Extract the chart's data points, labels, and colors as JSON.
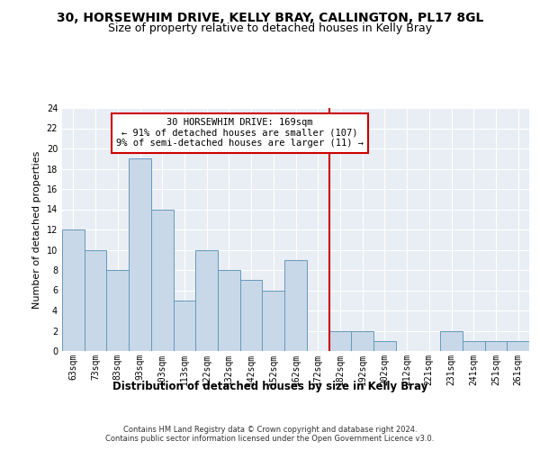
{
  "title1": "30, HORSEWHIM DRIVE, KELLY BRAY, CALLINGTON, PL17 8GL",
  "title2": "Size of property relative to detached houses in Kelly Bray",
  "xlabel": "Distribution of detached houses by size in Kelly Bray",
  "ylabel": "Number of detached properties",
  "categories": [
    "63sqm",
    "73sqm",
    "83sqm",
    "93sqm",
    "103sqm",
    "113sqm",
    "122sqm",
    "132sqm",
    "142sqm",
    "152sqm",
    "162sqm",
    "172sqm",
    "182sqm",
    "192sqm",
    "202sqm",
    "212sqm",
    "221sqm",
    "231sqm",
    "241sqm",
    "251sqm",
    "261sqm"
  ],
  "values": [
    12,
    10,
    8,
    19,
    14,
    5,
    10,
    8,
    7,
    6,
    9,
    0,
    2,
    2,
    1,
    0,
    0,
    2,
    1,
    1,
    1
  ],
  "bar_color": "#c8d8e8",
  "bar_edge_color": "#6699bb",
  "reference_line_x": 11.5,
  "reference_line_color": "#cc0000",
  "annotation_text": "30 HORSEWHIM DRIVE: 169sqm\n← 91% of detached houses are smaller (107)\n9% of semi-detached houses are larger (11) →",
  "annotation_box_color": "#cc0000",
  "ylim": [
    0,
    24
  ],
  "yticks": [
    0,
    2,
    4,
    6,
    8,
    10,
    12,
    14,
    16,
    18,
    20,
    22,
    24
  ],
  "background_color": "#e8eef4",
  "footer_text": "Contains HM Land Registry data © Crown copyright and database right 2024.\nContains public sector information licensed under the Open Government Licence v3.0.",
  "title1_fontsize": 10,
  "title2_fontsize": 9,
  "xlabel_fontsize": 8.5,
  "ylabel_fontsize": 8,
  "tick_fontsize": 7,
  "annotation_fontsize": 7.5,
  "footer_fontsize": 6
}
